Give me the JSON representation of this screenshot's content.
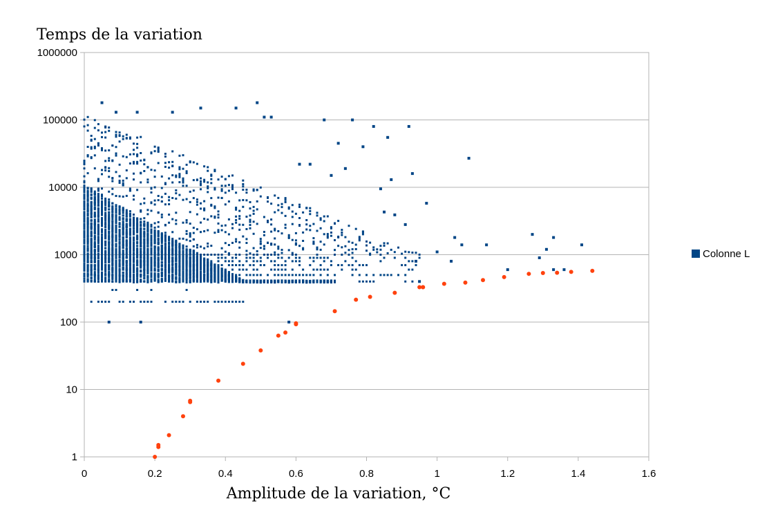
{
  "chart_data": {
    "type": "scatter",
    "title": "Temps de la variation",
    "xlabel": "Amplitude de la variation, °C",
    "ylabel": "",
    "xlim": [
      0,
      1.6
    ],
    "ylim": [
      1,
      1000000
    ],
    "yscale": "log",
    "grid": "horizontal",
    "legend_position": "right",
    "x_ticks": [
      "0",
      "0.2",
      "0.4",
      "0.6",
      "0.8",
      "1",
      "1.2",
      "1.4",
      "1.6"
    ],
    "y_ticks": [
      "1",
      "10",
      "100",
      "1000",
      "10000",
      "100000",
      "1000000"
    ],
    "series": [
      {
        "name": "Colonne L",
        "color": "#004586",
        "marker": "square",
        "note": "dense cloud of points",
        "points": [
          [
            0.07,
            100
          ],
          [
            0.16,
            100
          ],
          [
            0.58,
            100
          ],
          [
            0.05,
            180000
          ],
          [
            0.49,
            180000
          ],
          [
            0.33,
            150000
          ],
          [
            0.43,
            150000
          ],
          [
            0.09,
            130000
          ],
          [
            0.15,
            130000
          ],
          [
            0.25,
            130000
          ],
          [
            0.51,
            110000
          ],
          [
            0.53,
            110000
          ],
          [
            0.68,
            100000
          ],
          [
            0.76,
            100000
          ],
          [
            0.92,
            80000
          ],
          [
            0.82,
            80000
          ],
          [
            0.86,
            55000
          ],
          [
            0.79,
            40000
          ],
          [
            0.72,
            45000
          ],
          [
            1.09,
            27000
          ],
          [
            0.61,
            22000
          ],
          [
            0.64,
            22000
          ],
          [
            0.74,
            19000
          ],
          [
            0.93,
            16000
          ],
          [
            0.7,
            15000
          ],
          [
            0.84,
            9500
          ],
          [
            0.87,
            13000
          ],
          [
            0.97,
            5800
          ],
          [
            0.85,
            4300
          ],
          [
            0.88,
            3900
          ],
          [
            0.91,
            2800
          ],
          [
            1.05,
            1800
          ],
          [
            1.33,
            1800
          ],
          [
            1.27,
            2000
          ],
          [
            1.14,
            1400
          ],
          [
            1.41,
            1400
          ],
          [
            1.31,
            1200
          ],
          [
            1.29,
            900
          ],
          [
            1.07,
            1400
          ],
          [
            1.0,
            1100
          ],
          [
            1.04,
            800
          ],
          [
            1.2,
            600
          ],
          [
            1.33,
            600
          ],
          [
            1.36,
            600
          ],
          [
            0.95,
            400
          ],
          [
            0.94,
            800
          ]
        ]
      },
      {
        "name": "",
        "color": "#ff420e",
        "marker": "circle",
        "points": [
          [
            0.2,
            1.0
          ],
          [
            0.21,
            1.4
          ],
          [
            0.21,
            1.5
          ],
          [
            0.24,
            2.1
          ],
          [
            0.28,
            4.0
          ],
          [
            0.3,
            6.5
          ],
          [
            0.3,
            6.8
          ],
          [
            0.38,
            13.5
          ],
          [
            0.45,
            24
          ],
          [
            0.5,
            38
          ],
          [
            0.55,
            63
          ],
          [
            0.57,
            70
          ],
          [
            0.6,
            93
          ],
          [
            0.6,
            96
          ],
          [
            0.71,
            145
          ],
          [
            0.77,
            215
          ],
          [
            0.81,
            237
          ],
          [
            0.88,
            272
          ],
          [
            0.95,
            330
          ],
          [
            0.96,
            330
          ],
          [
            0.96,
            330
          ],
          [
            1.02,
            370
          ],
          [
            1.08,
            385
          ],
          [
            1.13,
            420
          ],
          [
            1.19,
            465
          ],
          [
            1.26,
            520
          ],
          [
            1.3,
            535
          ],
          [
            1.34,
            540
          ],
          [
            1.38,
            555
          ],
          [
            1.44,
            575
          ]
        ]
      }
    ]
  }
}
